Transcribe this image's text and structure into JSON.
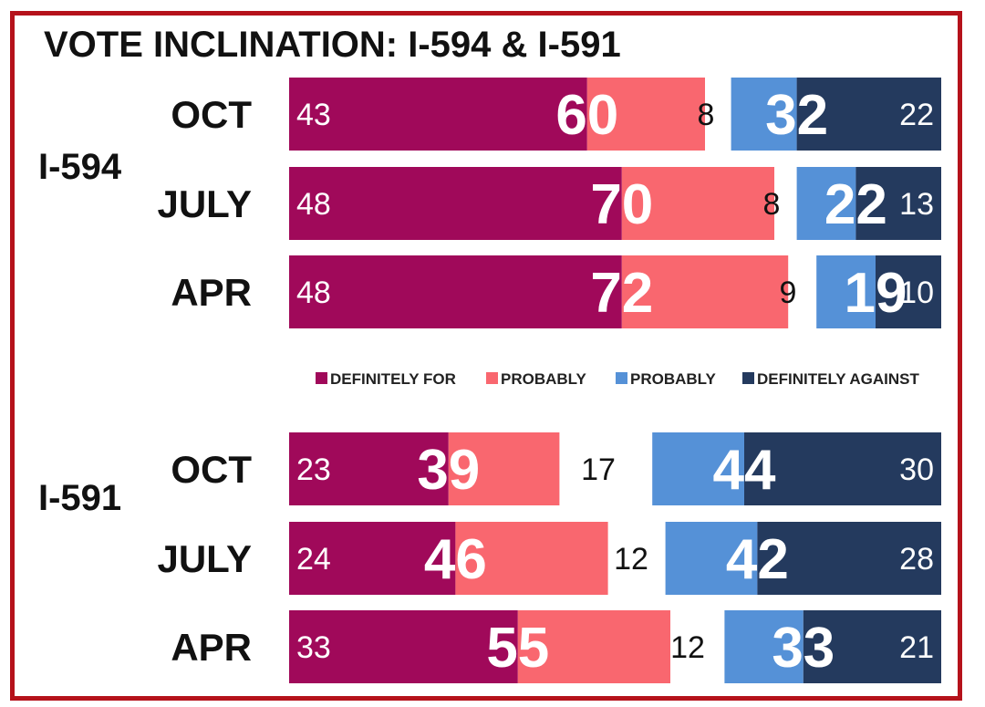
{
  "colors": {
    "definitely_for": "#a0095a",
    "probably_for": "#f9676f",
    "probably_against": "#5591d7",
    "definitely_against": "#243a5e",
    "frame": "#b5121b"
  },
  "chart_data": {
    "type": "bar",
    "title": "VOTE INCLINATION: I-594 & I-591",
    "legend": {
      "position": "middle",
      "entries": [
        "DEFINITELY FOR",
        "PROBABLY",
        "PROBABLY",
        "DEFINITELY AGAINST"
      ]
    },
    "groups": [
      {
        "name": "I-594",
        "rows": [
          {
            "label": "OCT",
            "definitely_for": 43,
            "total_for": 60,
            "undecided": 8,
            "total_against": 32,
            "definitely_against": 22
          },
          {
            "label": "JULY",
            "definitely_for": 48,
            "total_for": 70,
            "undecided": 8,
            "total_against": 22,
            "definitely_against": 13
          },
          {
            "label": "APR",
            "definitely_for": 48,
            "total_for": 72,
            "undecided": 9,
            "total_against": 19,
            "definitely_against": 10
          }
        ]
      },
      {
        "name": "I-591",
        "rows": [
          {
            "label": "OCT",
            "definitely_for": 23,
            "total_for": 39,
            "undecided": 17,
            "total_against": 44,
            "definitely_against": 30
          },
          {
            "label": "JULY",
            "definitely_for": 24,
            "total_for": 46,
            "undecided": 12,
            "total_against": 42,
            "definitely_against": 28
          },
          {
            "label": "APR",
            "definitely_for": 33,
            "total_for": 55,
            "undecided": 12,
            "total_against": 33,
            "definitely_against": 21
          }
        ]
      }
    ]
  }
}
